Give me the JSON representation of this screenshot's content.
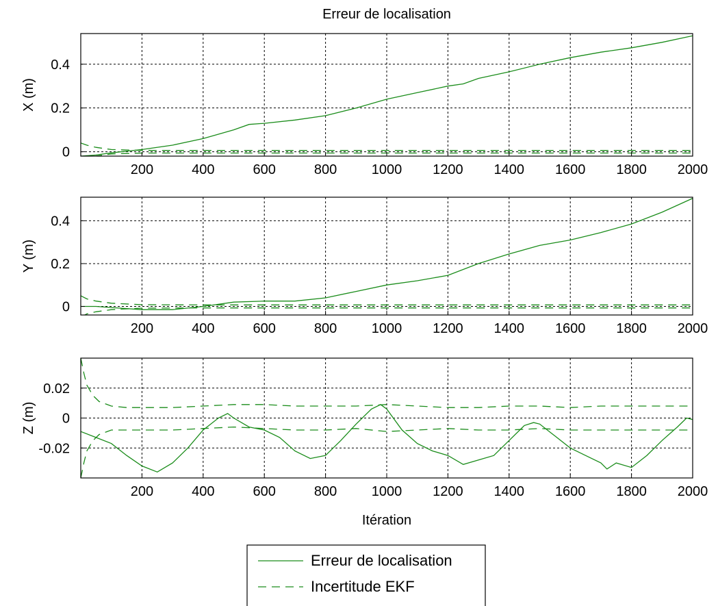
{
  "chart_data": [
    {
      "type": "line",
      "title": "Erreur de localisation",
      "xlabel": "",
      "ylabel": "X (m)",
      "xlim": [
        0,
        2000
      ],
      "ylim": [
        -0.02,
        0.54
      ],
      "xticks": [
        200,
        400,
        600,
        800,
        1000,
        1200,
        1400,
        1600,
        1800,
        2000
      ],
      "xtick_labels": [
        "200",
        "400",
        "600",
        "800",
        "1000",
        "1200",
        "1400",
        "1600",
        "1800",
        "2000"
      ],
      "yticks": [
        0,
        0.2,
        0.4
      ],
      "ytick_labels": [
        "0",
        "0.2",
        "0.4"
      ],
      "grid": true,
      "series": [
        {
          "name": "Erreur de localisation",
          "style": "solid",
          "x": [
            0,
            50,
            100,
            200,
            300,
            400,
            500,
            550,
            600,
            700,
            800,
            900,
            1000,
            1100,
            1200,
            1250,
            1300,
            1400,
            1500,
            1600,
            1700,
            1800,
            1900,
            2000
          ],
          "y": [
            -0.02,
            -0.015,
            -0.005,
            0.01,
            0.03,
            0.06,
            0.1,
            0.125,
            0.13,
            0.145,
            0.165,
            0.2,
            0.24,
            0.27,
            0.3,
            0.31,
            0.335,
            0.365,
            0.4,
            0.43,
            0.455,
            0.475,
            0.5,
            0.53
          ]
        },
        {
          "name": "Incertitude EKF",
          "style": "dashed",
          "x": [
            0,
            20,
            50,
            100,
            200,
            400,
            600,
            800,
            1000,
            1200,
            1400,
            1600,
            1800,
            2000
          ],
          "y": [
            0.04,
            0.03,
            0.02,
            0.01,
            0.006,
            0.006,
            0.006,
            0.006,
            0.006,
            0.006,
            0.006,
            0.006,
            0.006,
            0.006
          ]
        },
        {
          "name": "",
          "style": "dashed",
          "x": [
            0,
            20,
            50,
            100,
            200,
            400,
            600,
            800,
            1000,
            1200,
            1400,
            1600,
            1800,
            2000
          ],
          "y": [
            -0.04,
            -0.03,
            -0.02,
            -0.01,
            -0.006,
            -0.006,
            -0.006,
            -0.006,
            -0.006,
            -0.006,
            -0.006,
            -0.006,
            -0.006,
            -0.006
          ]
        }
      ]
    },
    {
      "type": "line",
      "title": "",
      "xlabel": "",
      "ylabel": "Y (m)",
      "xlim": [
        0,
        2000
      ],
      "ylim": [
        -0.04,
        0.51
      ],
      "xticks": [
        200,
        400,
        600,
        800,
        1000,
        1200,
        1400,
        1600,
        1800,
        2000
      ],
      "xtick_labels": [
        "200",
        "400",
        "600",
        "800",
        "1000",
        "1200",
        "1400",
        "1600",
        "1800",
        "2000"
      ],
      "yticks": [
        0,
        0.2,
        0.4
      ],
      "ytick_labels": [
        "0",
        "0.2",
        "0.4"
      ],
      "grid": true,
      "series": [
        {
          "name": "Erreur de localisation",
          "style": "solid",
          "x": [
            0,
            50,
            100,
            200,
            300,
            400,
            500,
            600,
            700,
            800,
            900,
            1000,
            1100,
            1200,
            1300,
            1400,
            1500,
            1600,
            1700,
            1800,
            1900,
            2000
          ],
          "y": [
            0.0,
            0.0,
            -0.005,
            -0.015,
            -0.015,
            0.0,
            0.02,
            0.025,
            0.025,
            0.04,
            0.07,
            0.1,
            0.12,
            0.145,
            0.2,
            0.245,
            0.285,
            0.31,
            0.345,
            0.385,
            0.44,
            0.505
          ]
        },
        {
          "name": "Incertitude EKF",
          "style": "dashed",
          "x": [
            0,
            20,
            50,
            100,
            200,
            400,
            600,
            800,
            1000,
            1200,
            1400,
            1600,
            1800,
            2000
          ],
          "y": [
            0.05,
            0.035,
            0.025,
            0.015,
            0.008,
            0.007,
            0.007,
            0.007,
            0.007,
            0.007,
            0.007,
            0.007,
            0.007,
            0.007
          ]
        },
        {
          "name": "",
          "style": "dashed",
          "x": [
            0,
            20,
            50,
            100,
            200,
            400,
            600,
            800,
            1000,
            1200,
            1400,
            1600,
            1800,
            2000
          ],
          "y": [
            -0.05,
            -0.035,
            -0.025,
            -0.015,
            -0.008,
            -0.007,
            -0.007,
            -0.007,
            -0.007,
            -0.007,
            -0.007,
            -0.007,
            -0.007,
            -0.007
          ]
        }
      ]
    },
    {
      "type": "line",
      "title": "",
      "xlabel": "Itération",
      "ylabel": "Z (m)",
      "xlim": [
        0,
        2000
      ],
      "ylim": [
        -0.04,
        0.04
      ],
      "xticks": [
        200,
        400,
        600,
        800,
        1000,
        1200,
        1400,
        1600,
        1800,
        2000
      ],
      "xtick_labels": [
        "200",
        "400",
        "600",
        "800",
        "1000",
        "1200",
        "1400",
        "1600",
        "1800",
        "2000"
      ],
      "yticks": [
        -0.02,
        0,
        0.02
      ],
      "ytick_labels": [
        "-0.02",
        "0",
        "0.02"
      ],
      "grid": true,
      "series": [
        {
          "name": "Erreur de localisation",
          "style": "solid",
          "x": [
            0,
            50,
            100,
            150,
            200,
            250,
            300,
            350,
            400,
            450,
            480,
            500,
            550,
            600,
            650,
            700,
            750,
            800,
            850,
            900,
            950,
            980,
            1000,
            1050,
            1100,
            1150,
            1200,
            1250,
            1300,
            1350,
            1400,
            1450,
            1480,
            1500,
            1550,
            1600,
            1650,
            1700,
            1720,
            1750,
            1800,
            1850,
            1900,
            1950,
            1980,
            2000
          ],
          "y": [
            -0.009,
            -0.013,
            -0.017,
            -0.025,
            -0.032,
            -0.036,
            -0.03,
            -0.02,
            -0.008,
            0.0,
            0.003,
            0.0,
            -0.006,
            -0.008,
            -0.013,
            -0.022,
            -0.027,
            -0.025,
            -0.015,
            -0.004,
            0.006,
            0.009,
            0.006,
            -0.008,
            -0.017,
            -0.022,
            -0.025,
            -0.031,
            -0.028,
            -0.025,
            -0.015,
            -0.005,
            -0.003,
            -0.004,
            -0.012,
            -0.02,
            -0.025,
            -0.03,
            -0.034,
            -0.03,
            -0.033,
            -0.025,
            -0.015,
            -0.006,
            0.0,
            -0.001
          ]
        },
        {
          "name": "Incertitude EKF",
          "style": "dashed",
          "x": [
            0,
            10,
            20,
            40,
            60,
            100,
            150,
            200,
            300,
            400,
            500,
            600,
            700,
            800,
            900,
            1000,
            1100,
            1200,
            1300,
            1400,
            1500,
            1600,
            1700,
            1800,
            1900,
            2000
          ],
          "y": [
            0.04,
            0.03,
            0.022,
            0.015,
            0.011,
            0.008,
            0.007,
            0.007,
            0.007,
            0.008,
            0.009,
            0.009,
            0.008,
            0.008,
            0.008,
            0.009,
            0.008,
            0.007,
            0.007,
            0.008,
            0.008,
            0.007,
            0.008,
            0.008,
            0.008,
            0.008
          ]
        },
        {
          "name": "",
          "style": "dashed",
          "x": [
            0,
            10,
            20,
            40,
            60,
            100,
            150,
            200,
            300,
            400,
            500,
            600,
            700,
            800,
            900,
            1000,
            1100,
            1200,
            1300,
            1400,
            1500,
            1600,
            1700,
            1800,
            1900,
            2000
          ],
          "y": [
            -0.04,
            -0.03,
            -0.022,
            -0.015,
            -0.011,
            -0.008,
            -0.008,
            -0.008,
            -0.008,
            -0.007,
            -0.006,
            -0.007,
            -0.008,
            -0.008,
            -0.007,
            -0.009,
            -0.008,
            -0.007,
            -0.008,
            -0.008,
            -0.007,
            -0.008,
            -0.008,
            -0.008,
            -0.008,
            -0.008
          ]
        }
      ]
    }
  ],
  "legend": {
    "placement": "bottom-center",
    "entries": [
      {
        "label": "Erreur de localisation",
        "style": "solid"
      },
      {
        "label": "Incertitude EKF",
        "style": "dashed"
      }
    ]
  },
  "colors": {
    "series": "#1a8c1a",
    "grid": "#000000",
    "axis": "#000000"
  }
}
